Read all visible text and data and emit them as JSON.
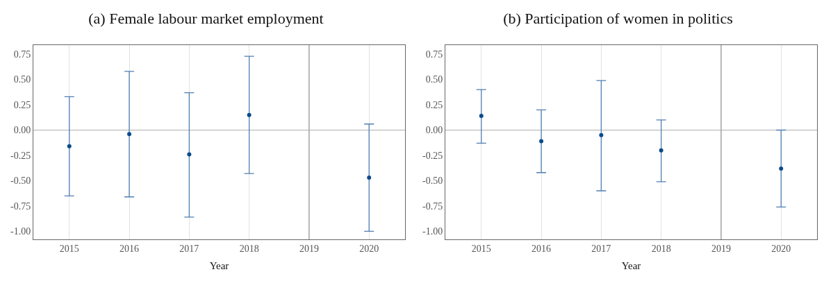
{
  "chart_data": [
    {
      "type": "scatter",
      "title": "(a) Female labour market employment",
      "xlabel": "Year",
      "x": [
        2015,
        2016,
        2017,
        2018,
        2020
      ],
      "series": [
        {
          "color": "#0b4a8b",
          "values": [
            -0.16,
            -0.04,
            -0.24,
            0.15,
            -0.47
          ],
          "errors": [
            [
              -0.65,
              0.33
            ],
            [
              -0.66,
              0.58
            ],
            [
              -0.86,
              0.37
            ],
            [
              -0.43,
              0.73
            ],
            [
              -1.0,
              0.06
            ]
          ]
        }
      ],
      "xlim": [
        2014.4,
        2020.6
      ],
      "xticks": [
        2015,
        2016,
        2017,
        2018,
        2019,
        2020
      ],
      "ylim": [
        -1.08,
        0.84
      ],
      "yticks": [
        {
          "value": -1,
          "label": "-1.00"
        },
        {
          "value": -0.75,
          "label": "-0.75"
        },
        {
          "value": -0.5,
          "label": "-0.50"
        },
        {
          "value": -0.25,
          "label": "-0.25"
        },
        {
          "value": 0,
          "label": "0.00"
        },
        {
          "value": 0.25,
          "label": "0.25"
        },
        {
          "value": 0.5,
          "label": "0.50"
        },
        {
          "value": 0.75,
          "label": "0.75"
        }
      ],
      "grid": "x",
      "marker": "circle",
      "ref_lines": [
        {
          "axis": "y",
          "value": 0,
          "color": "#b0b0b0"
        },
        {
          "axis": "x",
          "value": 2019,
          "color": "#a0a0a0"
        }
      ]
    },
    {
      "type": "scatter",
      "title": "(b) Participation of women in politics",
      "xlabel": "Year",
      "x": [
        2015,
        2016,
        2017,
        2018,
        2020
      ],
      "series": [
        {
          "color": "#0b4a8b",
          "values": [
            0.14,
            -0.11,
            -0.05,
            -0.2,
            -0.38
          ],
          "errors": [
            [
              -0.13,
              0.4
            ],
            [
              -0.42,
              0.2
            ],
            [
              -0.6,
              0.49
            ],
            [
              -0.51,
              0.1
            ],
            [
              -0.76,
              0.0
            ]
          ]
        }
      ],
      "xlim": [
        2014.4,
        2020.6
      ],
      "xticks": [
        2015,
        2016,
        2017,
        2018,
        2019,
        2020
      ],
      "ylim": [
        -1.08,
        0.84
      ],
      "yticks": [
        {
          "value": -1,
          "label": "-1.00"
        },
        {
          "value": -0.75,
          "label": "-0.75"
        },
        {
          "value": -0.5,
          "label": "-0.50"
        },
        {
          "value": -0.25,
          "label": "-0.25"
        },
        {
          "value": 0,
          "label": "0.00"
        },
        {
          "value": 0.25,
          "label": "0.25"
        },
        {
          "value": 0.5,
          "label": "0.50"
        },
        {
          "value": 0.75,
          "label": "0.75"
        }
      ],
      "grid": "x",
      "marker": "circle",
      "ref_lines": [
        {
          "axis": "y",
          "value": 0,
          "color": "#b0b0b0"
        },
        {
          "axis": "x",
          "value": 2019,
          "color": "#a0a0a0"
        }
      ]
    }
  ]
}
